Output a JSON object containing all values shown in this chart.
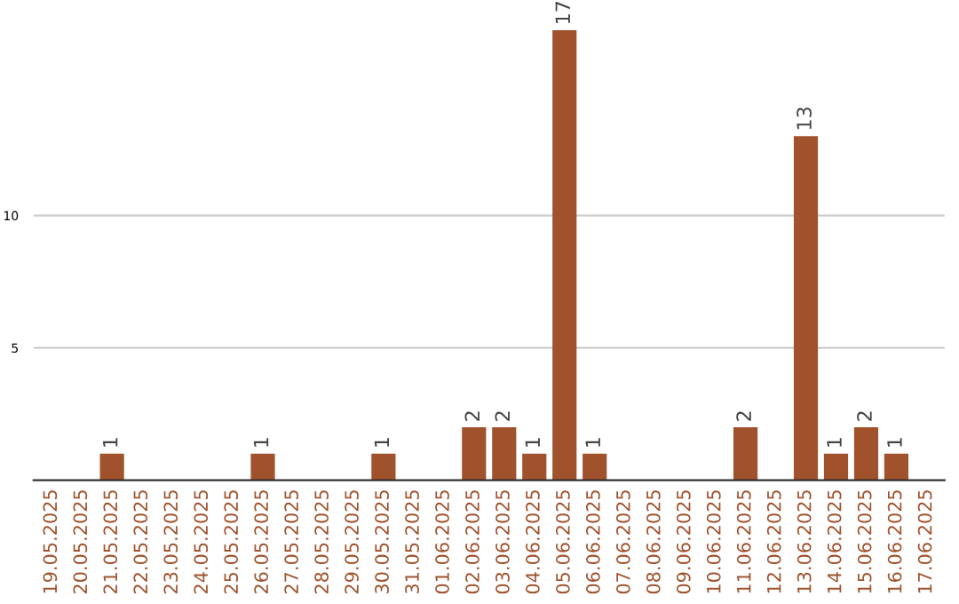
{
  "chart_data": {
    "type": "bar",
    "categories": [
      "19.05.2025",
      "20.05.2025",
      "21.05.2025",
      "22.05.2025",
      "23.05.2025",
      "24.05.2025",
      "25.05.2025",
      "26.05.2025",
      "27.05.2025",
      "28.05.2025",
      "29.05.2025",
      "30.05.2025",
      "31.05.2025",
      "01.06.2025",
      "02.06.2025",
      "03.06.2025",
      "04.06.2025",
      "05.06.2025",
      "06.06.2025",
      "07.06.2025",
      "08.06.2025",
      "09.06.2025",
      "10.06.2025",
      "11.06.2025",
      "12.06.2025",
      "13.06.2025",
      "14.06.2025",
      "15.06.2025",
      "16.06.2025",
      "17.06.2025"
    ],
    "values": [
      0,
      0,
      1,
      0,
      0,
      0,
      0,
      1,
      0,
      0,
      0,
      1,
      0,
      0,
      2,
      2,
      1,
      17,
      1,
      0,
      0,
      0,
      0,
      2,
      0,
      13,
      1,
      2,
      1,
      0
    ],
    "value_labels": [
      null,
      null,
      "1",
      null,
      null,
      null,
      null,
      "1",
      null,
      null,
      null,
      "1",
      null,
      null,
      "2",
      "2",
      "1",
      "17",
      "1",
      null,
      null,
      null,
      null,
      "2",
      null,
      "13",
      "1",
      "2",
      "1",
      null
    ],
    "color": "#a0522d",
    "ylim": [
      0,
      17
    ],
    "yticks": [
      5,
      10
    ],
    "grid": "y"
  }
}
